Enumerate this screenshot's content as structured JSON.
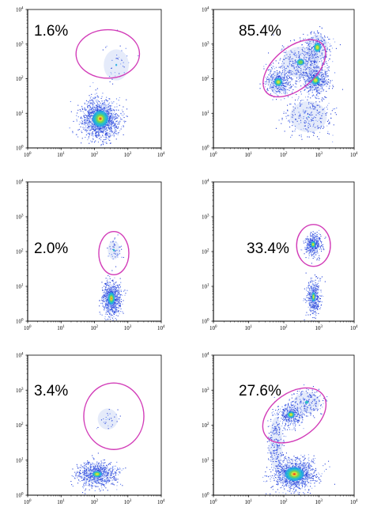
{
  "chart_data": [
    {
      "type": "scatter",
      "panel": "top-left",
      "percentage_label": "1.6%",
      "scale": "log",
      "xlim": [
        1,
        10000
      ],
      "ylim": [
        1,
        10000
      ],
      "xticks": [
        "10",
        "10",
        "10",
        "10",
        "10"
      ],
      "xtick_exponents": [
        "0",
        "1",
        "2",
        "3",
        "4"
      ],
      "yticks": [
        "10",
        "10",
        "10",
        "10",
        "10"
      ],
      "ytick_exponents": [
        "0",
        "1",
        "2",
        "3",
        "4"
      ],
      "gate": {
        "center": [
          250,
          520
        ],
        "x_decades_half": 0.95,
        "y_decades_half": 0.7,
        "angle": 0
      },
      "populations": [
        {
          "center": [
            150,
            7
          ],
          "sx": 0.28,
          "sy": 0.28,
          "n": 1300,
          "core": 0.8
        },
        {
          "center": [
            450,
            250
          ],
          "sx": 0.25,
          "sy": 0.3,
          "n": 35,
          "core": 0.1
        }
      ]
    },
    {
      "type": "scatter",
      "panel": "top-right",
      "percentage_label": "85.4%",
      "scale": "log",
      "xlim": [
        1,
        10000
      ],
      "ylim": [
        1,
        10000
      ],
      "xticks": [
        "10",
        "10",
        "10",
        "10",
        "10"
      ],
      "xtick_exponents": [
        "0",
        "1",
        "2",
        "3",
        "4"
      ],
      "yticks": [
        "10",
        "10",
        "10",
        "10",
        "10"
      ],
      "ytick_exponents": [
        "0",
        "1",
        "2",
        "3",
        "4"
      ],
      "gate": {
        "center": [
          200,
          200
        ],
        "x_decades_half": 1.05,
        "y_decades_half": 0.6,
        "angle": -40
      },
      "populations": [
        {
          "center": [
            70,
            80
          ],
          "sx": 0.2,
          "sy": 0.2,
          "n": 350,
          "core": 0.55
        },
        {
          "center": [
            800,
            90
          ],
          "sx": 0.2,
          "sy": 0.2,
          "n": 400,
          "core": 0.6
        },
        {
          "center": [
            300,
            300
          ],
          "sx": 0.35,
          "sy": 0.3,
          "n": 380,
          "core": 0.3
        },
        {
          "center": [
            900,
            800
          ],
          "sx": 0.2,
          "sy": 0.25,
          "n": 220,
          "core": 0.5
        },
        {
          "center": [
            500,
            8
          ],
          "sx": 0.35,
          "sy": 0.3,
          "n": 260,
          "core": 0.05
        }
      ]
    },
    {
      "type": "scatter",
      "panel": "middle-left",
      "percentage_label": "2.0%",
      "scale": "log",
      "xlim": [
        1,
        10000
      ],
      "ylim": [
        1,
        10000
      ],
      "xticks": [
        "10",
        "10",
        "10",
        "10",
        "10"
      ],
      "xtick_exponents": [
        "0",
        "1",
        "2",
        "3",
        "4"
      ],
      "yticks": [
        "10",
        "10",
        "10",
        "10",
        "10"
      ],
      "ytick_exponents": [
        "0",
        "1",
        "2",
        "3",
        "4"
      ],
      "gate": {
        "center": [
          380,
          90
        ],
        "x_decades_half": 0.45,
        "y_decades_half": 0.62,
        "angle": 0
      },
      "populations": [
        {
          "center": [
            320,
            4.5
          ],
          "sx": 0.14,
          "sy": 0.24,
          "n": 750,
          "core": 0.7
        },
        {
          "center": [
            380,
            110
          ],
          "sx": 0.12,
          "sy": 0.18,
          "n": 45,
          "core": 0.2
        }
      ]
    },
    {
      "type": "scatter",
      "panel": "middle-right",
      "percentage_label": "33.4%",
      "scale": "log",
      "xlim": [
        1,
        10000
      ],
      "ylim": [
        1,
        10000
      ],
      "xticks": [
        "10",
        "10",
        "10",
        "10",
        "10"
      ],
      "xtick_exponents": [
        "0",
        "1",
        "2",
        "3",
        "4"
      ],
      "yticks": [
        "10",
        "10",
        "10",
        "10",
        "10"
      ],
      "ytick_exponents": [
        "0",
        "1",
        "2",
        "3",
        "4"
      ],
      "gate": {
        "center": [
          700,
          150
        ],
        "x_decades_half": 0.48,
        "y_decades_half": 0.6,
        "angle": 0
      },
      "populations": [
        {
          "center": [
            680,
            160
          ],
          "sx": 0.12,
          "sy": 0.16,
          "n": 360,
          "core": 0.55
        },
        {
          "center": [
            700,
            5
          ],
          "sx": 0.1,
          "sy": 0.26,
          "n": 400,
          "core": 0.5
        }
      ]
    },
    {
      "type": "scatter",
      "panel": "bottom-left",
      "percentage_label": "3.4%",
      "scale": "log",
      "xlim": [
        1,
        10000
      ],
      "ylim": [
        1,
        10000
      ],
      "xticks": [
        "10",
        "10",
        "10",
        "10",
        "10"
      ],
      "xtick_exponents": [
        "0",
        "1",
        "2",
        "3",
        "4"
      ],
      "yticks": [
        "10",
        "10",
        "10",
        "10",
        "10"
      ],
      "ytick_exponents": [
        "0",
        "1",
        "2",
        "3",
        "4"
      ],
      "gate": {
        "center": [
          380,
          180
        ],
        "x_decades_half": 0.9,
        "y_decades_half": 0.95,
        "angle": 0
      },
      "populations": [
        {
          "center": [
            120,
            4
          ],
          "sx": 0.3,
          "sy": 0.18,
          "n": 700,
          "core": 0.45
        },
        {
          "center": [
            250,
            150
          ],
          "sx": 0.2,
          "sy": 0.2,
          "n": 30,
          "core": 0.05
        }
      ]
    },
    {
      "type": "scatter",
      "panel": "bottom-right",
      "percentage_label": "27.6%",
      "scale": "log",
      "xlim": [
        1,
        10000
      ],
      "ylim": [
        1,
        10000
      ],
      "xticks": [
        "10",
        "10",
        "10",
        "10",
        "10"
      ],
      "xtick_exponents": [
        "0",
        "1",
        "2",
        "3",
        "4"
      ],
      "yticks": [
        "10",
        "10",
        "10",
        "10",
        "10"
      ],
      "ytick_exponents": [
        "0",
        "1",
        "2",
        "3",
        "4"
      ],
      "gate": {
        "center": [
          200,
          190
        ],
        "x_decades_half": 1.0,
        "y_decades_half": 0.65,
        "angle": -35
      },
      "populations": [
        {
          "center": [
            200,
            4
          ],
          "sx": 0.3,
          "sy": 0.22,
          "n": 1000,
          "core": 0.85
        },
        {
          "center": [
            160,
            200
          ],
          "sx": 0.18,
          "sy": 0.16,
          "n": 300,
          "core": 0.55
        },
        {
          "center": [
            450,
            450
          ],
          "sx": 0.25,
          "sy": 0.2,
          "n": 200,
          "core": 0.2
        },
        {
          "center": [
            60,
            30
          ],
          "sx": 0.12,
          "sy": 0.5,
          "n": 250,
          "core": 0.05
        }
      ]
    }
  ]
}
